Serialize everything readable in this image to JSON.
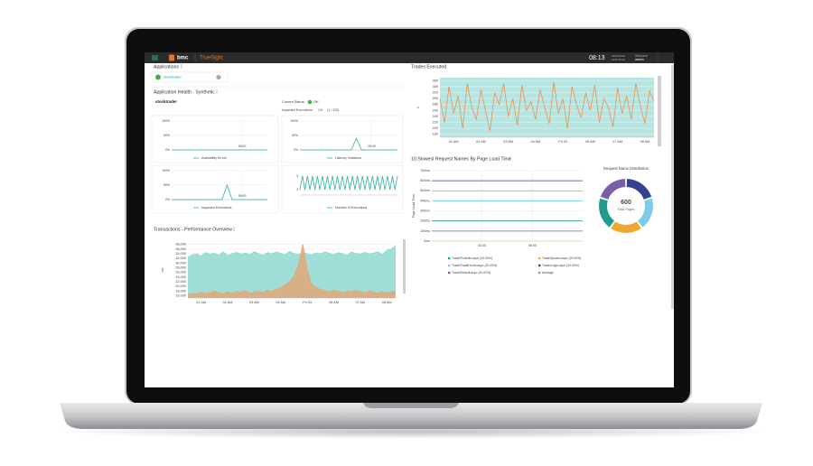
{
  "top_bar": {
    "brand": "bmc",
    "product": "TrueSight",
    "time": "08:13",
    "date": "03/03/2016",
    "timezone": "GMT-05:00",
    "welcome": "Welcome",
    "user": "admin"
  },
  "applications": {
    "title": "Applications",
    "app": "stocktrader"
  },
  "health": {
    "title": "Application Health - Synthetic",
    "app": "stocktrader",
    "status_label": "Current Status:",
    "status": "OK",
    "impacted_label": "Impacted Executions:",
    "impacted_pct": "1%",
    "impacted_count": "(1 / 220)",
    "charts": [
      {
        "type": "line",
        "grid": true,
        "ylim": [
          0,
          100
        ],
        "yticks": [
          {
            "value": 0,
            "label": "0%"
          },
          {
            "value": 50,
            "label": "50%"
          },
          {
            "value": 100,
            "label": "100%"
          }
        ],
        "categories": [
          null,
          null,
          null,
          null,
          null,
          null,
          null,
          null,
          null,
          null,
          null,
          null,
          null,
          null,
          "06:00",
          null,
          null,
          null,
          null,
          null
        ],
        "series": [
          {
            "name": "Availability Errors",
            "color": "#2bb3a3",
            "values": [
              0,
              0,
              0,
              0,
              0,
              0,
              0,
              0,
              0,
              0,
              0,
              0,
              0,
              0,
              0,
              0,
              0,
              0,
              0,
              0
            ]
          }
        ]
      },
      {
        "type": "line",
        "grid": true,
        "ylim": [
          0,
          100
        ],
        "yticks": [
          {
            "value": 0,
            "label": "0%"
          },
          {
            "value": 50,
            "label": "50%"
          },
          {
            "value": 100,
            "label": "100%"
          }
        ],
        "categories": [
          null,
          null,
          null,
          null,
          null,
          null,
          null,
          null,
          null,
          null,
          null,
          null,
          null,
          null,
          "06:00",
          null,
          null,
          null,
          null,
          null
        ],
        "series": [
          {
            "name": "Latency Violations",
            "color": "#2bb3a3",
            "values": [
              0,
              0,
              0,
              0,
              0,
              0,
              0,
              0,
              0,
              0,
              0,
              40,
              0,
              0,
              0,
              0,
              0,
              0,
              0,
              0
            ]
          }
        ]
      },
      {
        "type": "line",
        "grid": true,
        "ylim": [
          0,
          100
        ],
        "yticks": [
          {
            "value": 0,
            "label": "0%"
          },
          {
            "value": 50,
            "label": "50%"
          },
          {
            "value": 100,
            "label": "100%"
          }
        ],
        "categories": [
          null,
          null,
          null,
          null,
          null,
          null,
          null,
          null,
          null,
          null,
          null,
          null,
          null,
          null,
          "06:00",
          null,
          null,
          null,
          null,
          null
        ],
        "series": [
          {
            "name": "Impacted Executions",
            "color": "#2bb3a3",
            "values": [
              0,
              0,
              0,
              0,
              0,
              0,
              0,
              0,
              0,
              0,
              0,
              50,
              0,
              0,
              0,
              0,
              0,
              0,
              0,
              0
            ]
          }
        ]
      },
      {
        "type": "line",
        "grid": true,
        "ylim": [
          1.6,
          3.2
        ],
        "yticks": [
          2,
          3
        ],
        "series": [
          {
            "name": "Number of Executions",
            "color": "#2bb3a3",
            "values": [
              2,
              3,
              2,
              3,
              2,
              3,
              2,
              3,
              2,
              3,
              2,
              3,
              2,
              3,
              2,
              3,
              2,
              3,
              2,
              3,
              2,
              3,
              2,
              3,
              2,
              3,
              2,
              3,
              2,
              3,
              2,
              3,
              2,
              3,
              2,
              3,
              2,
              3,
              2,
              3
            ]
          }
        ]
      }
    ]
  },
  "transactions": {
    "title": "Transactions - Performance Overview",
    "chart": {
      "type": "area",
      "grid": true,
      "y_label": "ms",
      "ylim": [
        15000,
        39000
      ],
      "yticks": [
        {
          "value": 16000,
          "label": "16,000"
        },
        {
          "value": 18000,
          "label": "18,000"
        },
        {
          "value": 20000,
          "label": "20,000"
        },
        {
          "value": 22000,
          "label": "22,000"
        },
        {
          "value": 24000,
          "label": "24,000"
        },
        {
          "value": 26000,
          "label": "26,000"
        },
        {
          "value": 28000,
          "label": "28,000"
        },
        {
          "value": 30000,
          "label": "30,000"
        },
        {
          "value": 32000,
          "label": "32,000"
        },
        {
          "value": 34000,
          "label": "34,000"
        },
        {
          "value": 36000,
          "label": "36,000"
        },
        {
          "value": 38000,
          "label": "38,000"
        }
      ],
      "categories": [
        null,
        null,
        null,
        "01 AM",
        null,
        null,
        null,
        null,
        null,
        "02 AM",
        null,
        null,
        null,
        null,
        null,
        "03 AM",
        null,
        null,
        null,
        null,
        null,
        "04 AM",
        null,
        null,
        null,
        null,
        null,
        "Fri 03",
        null,
        null,
        null,
        null,
        null,
        "06 AM",
        null,
        null,
        null,
        null,
        null,
        "07 AM",
        null,
        null,
        null,
        null,
        null,
        "08 AM",
        null,
        null
      ],
      "series": [
        {
          "color": "#8fd9d1",
          "values": [
            32500,
            33500,
            34000,
            33000,
            34500,
            33800,
            34200,
            33500,
            34800,
            33200,
            34000,
            34600,
            33800,
            34300,
            33600,
            34900,
            34000,
            33400,
            34500,
            33900,
            34700,
            34200,
            33500,
            35000,
            34100,
            33700,
            34600,
            34000,
            33500,
            34400,
            33900,
            34800,
            34200,
            33600,
            34500,
            34000,
            33300,
            34700,
            34100,
            33800,
            34600,
            33900,
            34300,
            34800,
            33700,
            35500,
            36000,
            37500
          ]
        },
        {
          "color": "#e3a878",
          "values": [
            16500,
            17000,
            16800,
            17500,
            16900,
            17200,
            18000,
            17300,
            16800,
            17600,
            17100,
            17800,
            17400,
            18200,
            17000,
            17600,
            17900,
            17300,
            18500,
            17800,
            18800,
            19500,
            20500,
            22000,
            24500,
            29000,
            38000,
            27000,
            21000,
            19500,
            18800,
            18200,
            17600,
            18400,
            17900,
            17300,
            18000,
            17500,
            18300,
            17700,
            17200,
            18100,
            17600,
            17000,
            17800,
            17300,
            17600,
            18000
          ]
        }
      ]
    }
  },
  "trades": {
    "title": "Trades Executed",
    "chart": {
      "type": "line",
      "grid": true,
      "y_label": "#",
      "ylim": [
        170,
        370
      ],
      "yticks": [
        180,
        200,
        220,
        240,
        260,
        280,
        300,
        320,
        340,
        360
      ],
      "categories": [
        null,
        null,
        null,
        "01 AM",
        null,
        null,
        null,
        null,
        null,
        "02 AM",
        null,
        null,
        null,
        null,
        null,
        "03 AM",
        null,
        null,
        null,
        null,
        null,
        "04 AM",
        null,
        null,
        null,
        null,
        null,
        "Fri 03",
        null,
        null,
        null,
        null,
        null,
        "06 AM",
        null,
        null,
        null,
        null,
        null,
        "07 AM",
        null,
        null,
        null,
        null,
        null,
        "08 AM",
        null,
        null
      ],
      "series": [
        {
          "color": "#ee8f4e",
          "values": [
            300,
            220,
            340,
            250,
            310,
            200,
            350,
            270,
            230,
            330,
            260,
            190,
            320,
            280,
            350,
            240,
            300,
            210,
            345,
            260,
            290,
            230,
            330,
            270,
            215,
            355,
            250,
            300,
            200,
            340,
            280,
            235,
            320,
            260,
            345,
            220,
            300,
            270,
            205,
            335,
            250,
            310,
            230,
            350,
            275,
            215,
            325,
            290
          ]
        }
      ]
    }
  },
  "slowest": {
    "title": "10 Slowest Request Names By Page Load Time",
    "chart": {
      "type": "line",
      "grid": true,
      "y_label": "Page Load Time",
      "ylim": [
        0,
        700
      ],
      "yticks": [
        {
          "value": 0,
          "label": "0ms"
        },
        {
          "value": 100,
          "label": "100ms"
        },
        {
          "value": 200,
          "label": "200ms"
        },
        {
          "value": 300,
          "label": "300ms"
        },
        {
          "value": 400,
          "label": "400ms"
        },
        {
          "value": 500,
          "label": "500ms"
        },
        {
          "value": 600,
          "label": "600ms"
        },
        {
          "value": 700,
          "label": "700ms"
        }
      ],
      "categories": [
        null,
        "03:00",
        "06:00",
        null
      ],
      "series": [
        {
          "name": "Trade/Portfolio.aspx (20.00%)",
          "color": "#1f9c8f",
          "values": [
            200,
            200,
            200,
            200
          ]
        },
        {
          "name": "Trade/Quotes.aspx (20.00%)",
          "color": "#f0a830",
          "values": [
            500,
            500,
            500,
            500
          ]
        },
        {
          "name": "Trade/TradeHome.aspx (20.00%)",
          "color": "#7ecbe8",
          "values": [
            400,
            400,
            400,
            400
          ]
        },
        {
          "name": "Trade/Login.aspx (20.00%)",
          "color": "#33418f",
          "values": [
            600,
            600,
            600,
            600
          ]
        },
        {
          "name": "Trade/Default.aspx (20.00%)",
          "color": "#7a5fa8",
          "values": [
            100,
            100,
            100,
            100
          ]
        },
        {
          "name": "Average",
          "color": "#9a9a9a"
        }
      ]
    },
    "distribution": {
      "type": "pie",
      "title": "Request Name Distribution",
      "total": 600,
      "total_label": "Total Pages",
      "values": [
        120,
        120,
        120,
        120,
        120
      ],
      "colors": [
        "#33418f",
        "#7ecbe8",
        "#f0a830",
        "#1f9c8f",
        "#7a5fa8"
      ]
    }
  }
}
